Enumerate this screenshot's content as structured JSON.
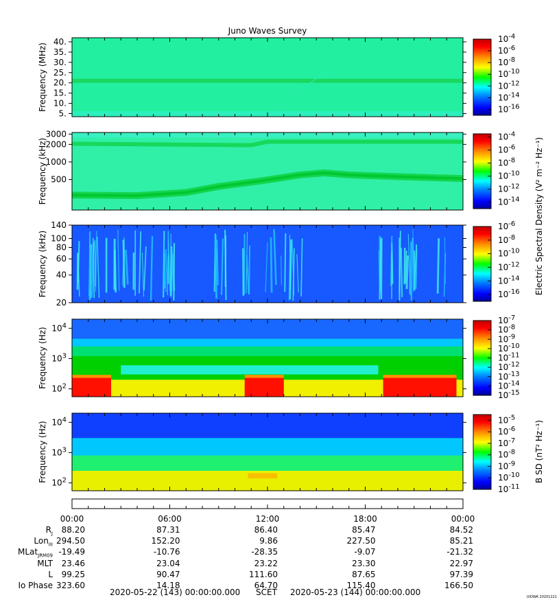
{
  "title": "Juno Waves Survey",
  "footer": {
    "start": "2020-05-22 (143) 00:00:00.000",
    "mid": "SCET",
    "end": "2020-05-23 (144) 00:00:00.000",
    "stamp": "UIOWA 20201221"
  },
  "chart_data": [
    {
      "type": "heatmap",
      "ylabel": "Frequency (MHz)",
      "y_ticks": [
        "40.",
        "35.",
        "30.",
        "25.",
        "20.",
        "15.",
        "10.",
        "5."
      ],
      "y_values": [
        40,
        35,
        30,
        25,
        20,
        15,
        10,
        5
      ],
      "ylim": [
        3.5,
        42
      ],
      "colorbar": {
        "ticks": [
          "10^-4",
          "10^-6",
          "10^-8",
          "10^-10",
          "10^-12",
          "10^-14",
          "10^-16"
        ],
        "log_range": [
          -17,
          -4
        ]
      },
      "features": "band near 21 MHz"
    },
    {
      "type": "heatmap",
      "ylabel": "Frequency (kHz)",
      "y_ticks": [
        "3000",
        "2000",
        "1000",
        "500"
      ],
      "y_values": [
        3000,
        2000,
        1000,
        500
      ],
      "yscale": "log",
      "ylim": [
        150,
        3200
      ],
      "colorbar": {
        "ticks": [
          "10^-4",
          "10^-6",
          "10^-8",
          "10^-10",
          "10^-12",
          "10^-14"
        ],
        "log_range": [
          -15,
          -3.5
        ]
      },
      "features": "band near 2000 kHz; band rising from ~270 kHz to ~650 kHz then ~520 kHz"
    },
    {
      "type": "heatmap",
      "ylabel": "Frequency (kHz)",
      "y_ticks": [
        "140",
        "100",
        "80",
        "60",
        "40",
        "20"
      ],
      "y_values": [
        140,
        100,
        80,
        60,
        40,
        20
      ],
      "yscale": "log",
      "ylim": [
        20,
        140
      ],
      "colorbar": {
        "ticks": [
          "10^-6",
          "10^-8",
          "10^-10",
          "10^-12",
          "10^-14",
          "10^-16"
        ],
        "log_range": [
          -17,
          -6
        ]
      },
      "colorbar_label": "Electric Spectral Density (V² m⁻² Hz⁻¹)",
      "features": "bursty emission 01-05h, 09-12h, 13-16h, 19-23h"
    },
    {
      "type": "heatmap",
      "ylabel": "Frequency (Hz)",
      "y_ticks": [
        "10^4",
        "10^3",
        "10^2"
      ],
      "y_values": [
        10000,
        1000,
        100
      ],
      "yscale": "log",
      "ylim": [
        55,
        20000
      ],
      "colorbar": {
        "ticks": [
          "10^-7",
          "10^-8",
          "10^-9",
          "10^-10",
          "10^-11",
          "10^-12",
          "10^-13",
          "10^-14",
          "10^-15"
        ],
        "log_range": [
          -15,
          -7
        ]
      },
      "features": "intense low-frequency emission 00-01h, 10.5-13h, 19-24h"
    },
    {
      "type": "heatmap",
      "ylabel": "Frequency (Hz)",
      "y_ticks": [
        "10^4",
        "10^3",
        "10^2"
      ],
      "y_values": [
        10000,
        1000,
        100
      ],
      "yscale": "log",
      "ylim": [
        55,
        20000
      ],
      "colorbar": {
        "ticks": [
          "10^-5",
          "10^-6",
          "10^-7",
          "10^-8",
          "10^-9",
          "10^-10",
          "10^-11"
        ],
        "log_range": [
          -11,
          -4.5
        ]
      },
      "colorbar_label": "B SD (nT² Hz⁻¹)",
      "features": "strong below ~200 Hz"
    }
  ],
  "x_axis": {
    "time_labels": [
      "00:00",
      "06:00",
      "12:00",
      "18:00",
      "00:00"
    ],
    "hours": [
      0,
      6,
      12,
      18,
      24
    ],
    "xlim_hours": [
      0,
      24
    ]
  },
  "ephemeris": [
    {
      "label": "R_J",
      "values": [
        "88.20",
        "87.31",
        "86.40",
        "85.47",
        "84.52"
      ]
    },
    {
      "label": "Lon_III",
      "values": [
        "294.50",
        "152.20",
        "9.86",
        "227.50",
        "85.21"
      ]
    },
    {
      "label": "MLat_JRM09",
      "values": [
        "-19.49",
        "-10.76",
        "-28.35",
        "-9.07",
        "-21.32"
      ]
    },
    {
      "label": "MLT",
      "values": [
        "23.46",
        "23.04",
        "23.22",
        "23.30",
        "22.97"
      ]
    },
    {
      "label": "L",
      "values": [
        "99.25",
        "90.47",
        "111.60",
        "87.65",
        "97.39"
      ]
    },
    {
      "label": "Io Phase",
      "values": [
        "323.60",
        "14.18",
        "64.70",
        "115.40",
        "166.50"
      ]
    }
  ]
}
